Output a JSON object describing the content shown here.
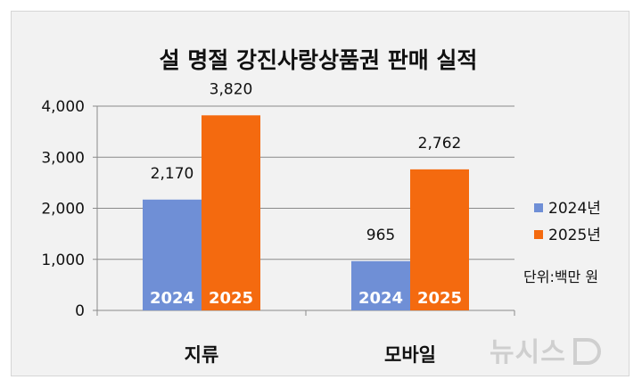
{
  "chart_data": {
    "type": "bar",
    "title": "설 명절 강진사랑상품권 판매 실적",
    "categories": [
      "지류",
      "모바일"
    ],
    "series": [
      {
        "name": "2024년",
        "inbar_label": "2024",
        "color": "#6f8fd6",
        "values": [
          2170,
          965
        ]
      },
      {
        "name": "2025년",
        "inbar_label": "2025",
        "color": "#f46a0f",
        "values": [
          3820,
          2762
        ]
      }
    ],
    "data_labels": [
      [
        "2,170",
        "965"
      ],
      [
        "3,820",
        "2,762"
      ]
    ],
    "y_ticks": [
      "0",
      "1,000",
      "2,000",
      "3,000",
      "4,000"
    ],
    "ylim": [
      0,
      4000
    ],
    "grid": true,
    "legend_position": "right",
    "unit_note": "단위:백만 원"
  },
  "watermark": "뉴시스"
}
